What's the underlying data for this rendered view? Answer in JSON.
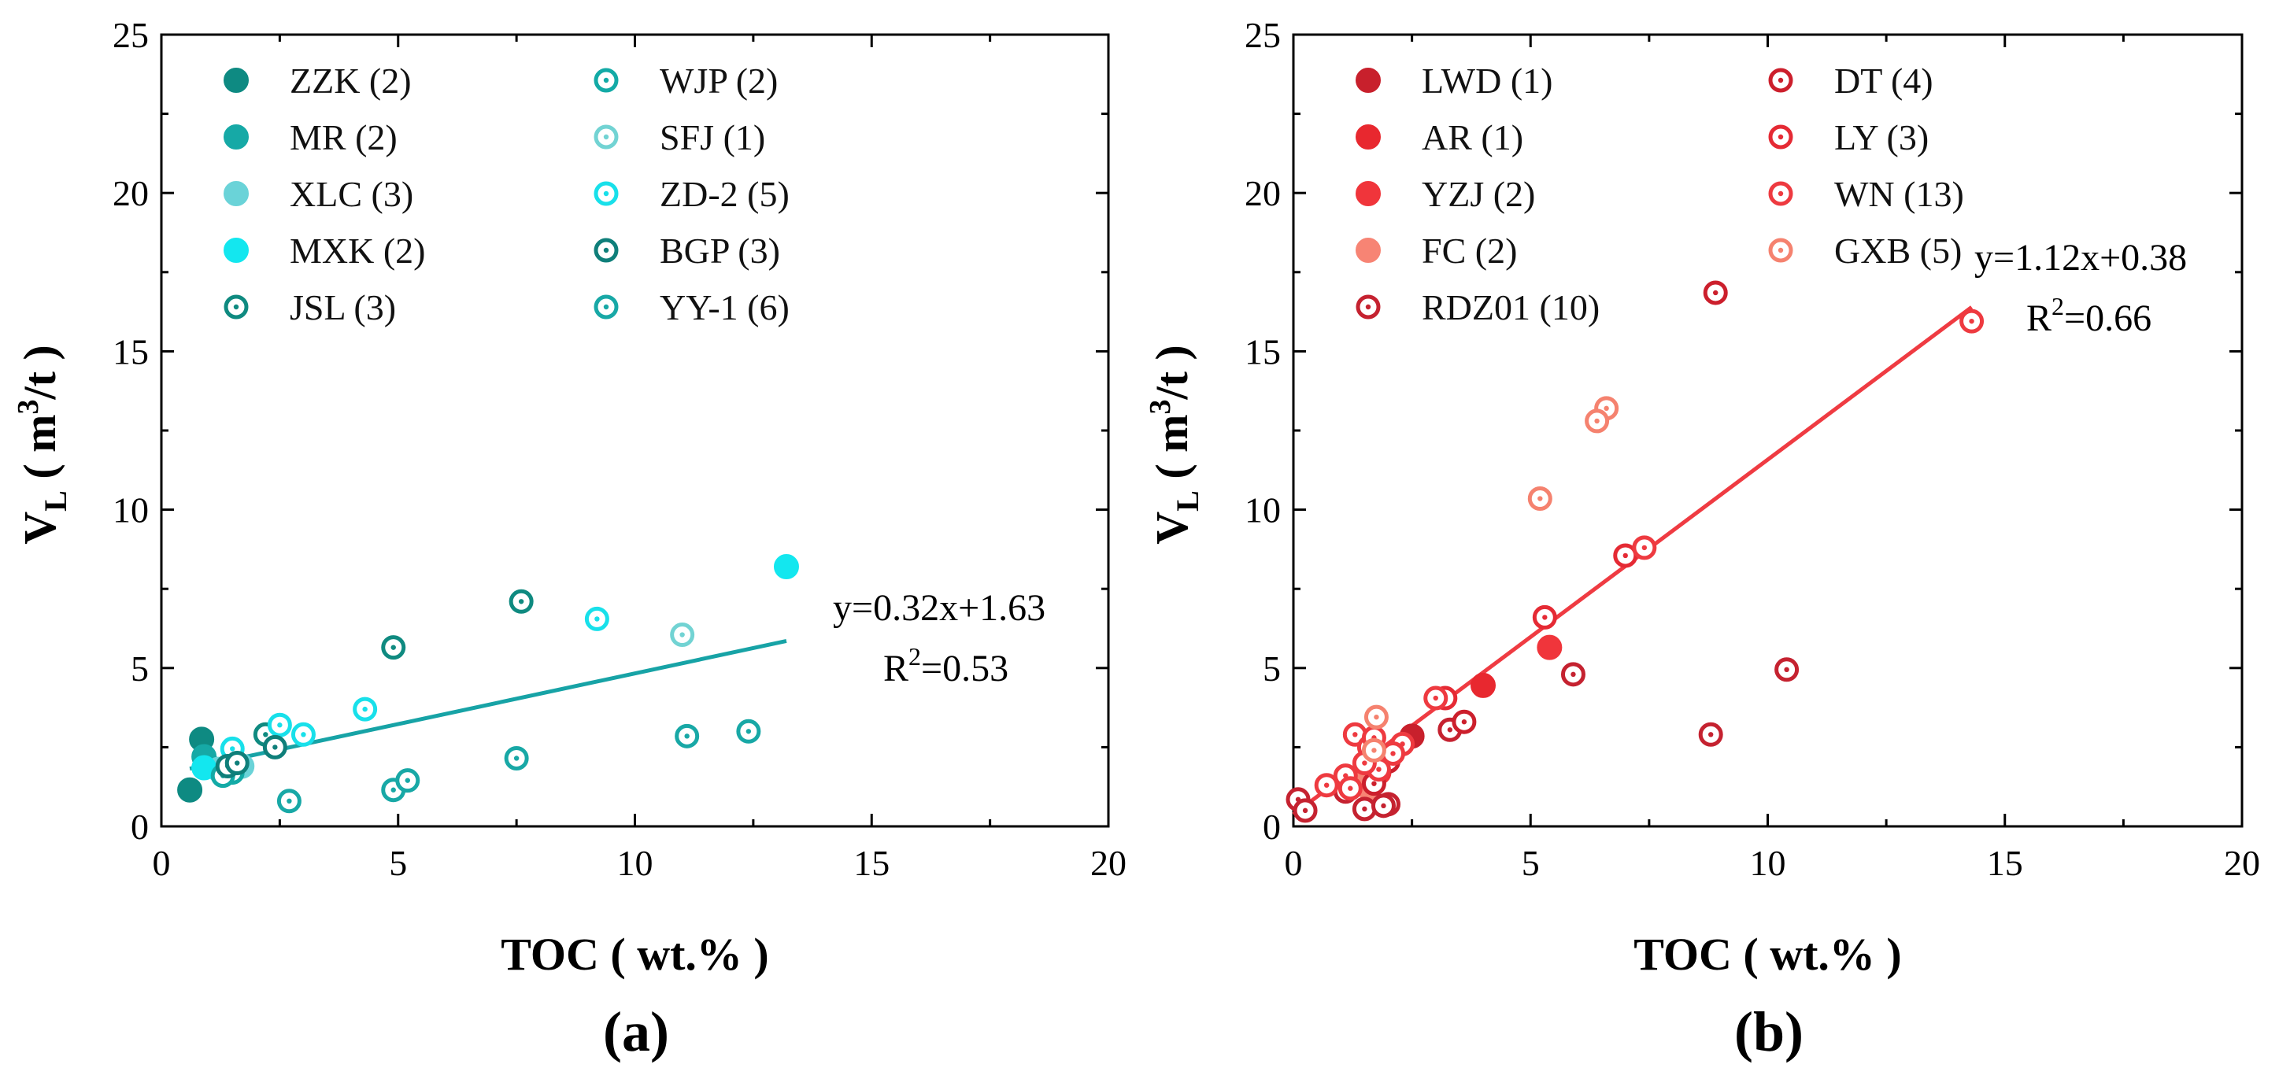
{
  "chart_data": [
    {
      "type": "scatter",
      "panel_label": "(a)",
      "xlabel": "TOC ( wt.% )",
      "ylabel": {
        "main": "V",
        "sub": "L",
        "open": " ( m",
        "sup": "3",
        "close": "/t )"
      },
      "xlim": [
        0,
        20
      ],
      "ylim": [
        0,
        25
      ],
      "xticks": [
        0,
        5,
        10,
        15,
        20
      ],
      "yticks": [
        0,
        5,
        10,
        15,
        20,
        25
      ],
      "fit": {
        "slope": 0.32,
        "intercept": 1.63,
        "x_range": [
          0.6,
          13.2
        ],
        "color": "#17a3a6",
        "equation": "y=0.32x+1.63",
        "r2_prefix": "R",
        "r2_sup": "2",
        "r2_value": "=0.53"
      },
      "series": [
        {
          "name": "ZZK (2)",
          "style": "filled",
          "color": "#0e8a82",
          "points": [
            [
              0.6,
              1.15
            ],
            [
              0.85,
              2.75
            ]
          ]
        },
        {
          "name": "MR (2)",
          "style": "filled",
          "color": "#16a9a6",
          "points": [
            [
              0.9,
              2.2
            ],
            [
              1.0,
              1.9
            ]
          ]
        },
        {
          "name": "XLC (3)",
          "style": "filled",
          "color": "#6ad3d8",
          "points": [
            [
              1.7,
              1.9
            ],
            [
              1.5,
              2.0
            ],
            [
              1.2,
              1.8
            ]
          ]
        },
        {
          "name": "MXK (2)",
          "style": "filled",
          "color": "#13e7ef",
          "points": [
            [
              0.9,
              1.85
            ],
            [
              13.2,
              8.2
            ]
          ]
        },
        {
          "name": "JSL (3)",
          "style": "open",
          "color": "#0f8a80",
          "points": [
            [
              4.9,
              5.65
            ],
            [
              7.6,
              7.1
            ],
            [
              2.2,
              2.9
            ]
          ]
        },
        {
          "name": "WJP (2)",
          "style": "open",
          "color": "#13aaa6",
          "points": [
            [
              1.5,
              1.7
            ],
            [
              1.3,
              1.6
            ]
          ]
        },
        {
          "name": "SFJ (1)",
          "style": "open",
          "color": "#72d3d3",
          "points": [
            [
              11.0,
              6.05
            ]
          ]
        },
        {
          "name": "ZD-2 (5)",
          "style": "open",
          "color": "#18e0ea",
          "points": [
            [
              9.2,
              6.55
            ],
            [
              4.3,
              3.7
            ],
            [
              2.5,
              3.2
            ],
            [
              1.5,
              2.45
            ],
            [
              3.0,
              2.9
            ]
          ]
        },
        {
          "name": "BGP (3)",
          "style": "open",
          "color": "#0f7f7a",
          "points": [
            [
              2.4,
              2.5
            ],
            [
              1.4,
              1.9
            ],
            [
              1.6,
              2.0
            ]
          ]
        },
        {
          "name": "YY-1 (6)",
          "style": "open",
          "color": "#18a8a6",
          "points": [
            [
              2.7,
              0.8
            ],
            [
              4.9,
              1.15
            ],
            [
              5.2,
              1.45
            ],
            [
              7.5,
              2.15
            ],
            [
              11.1,
              2.85
            ],
            [
              12.4,
              3.0
            ]
          ]
        }
      ]
    },
    {
      "type": "scatter",
      "panel_label": "(b)",
      "xlabel": "TOC ( wt.% )",
      "ylabel": {
        "main": "V",
        "sub": "L",
        "open": " ( m",
        "sup": "3",
        "close": "/t )"
      },
      "xlim": [
        0,
        20
      ],
      "ylim": [
        0,
        25
      ],
      "xticks": [
        0,
        5,
        10,
        15,
        20
      ],
      "yticks": [
        0,
        5,
        10,
        15,
        20,
        25
      ],
      "fit": {
        "slope": 1.12,
        "intercept": 0.38,
        "x_range": [
          0.0,
          14.3
        ],
        "color": "#ef3b42",
        "equation": "y=1.12x+0.38",
        "r2_prefix": "R",
        "r2_sup": "2",
        "r2_value": "=0.66"
      },
      "series": [
        {
          "name": "LWD (1)",
          "style": "filled",
          "color": "#c8202c",
          "points": [
            [
              2.5,
              2.85
            ]
          ]
        },
        {
          "name": "AR (1)",
          "style": "filled",
          "color": "#e8282f",
          "points": [
            [
              4.0,
              4.45
            ]
          ]
        },
        {
          "name": "YZJ (2)",
          "style": "filled",
          "color": "#f0353b",
          "points": [
            [
              5.4,
              5.65
            ],
            [
              1.8,
              1.7
            ]
          ]
        },
        {
          "name": "FC (2)",
          "style": "filled",
          "color": "#f78474",
          "points": [
            [
              1.3,
              1.5
            ],
            [
              1.6,
              1.2
            ]
          ]
        },
        {
          "name": "RDZ01 (10)",
          "style": "open",
          "color": "#c52230",
          "points": [
            [
              0.1,
              0.85
            ],
            [
              0.25,
              0.5
            ],
            [
              1.1,
              1.1
            ],
            [
              1.5,
              0.55
            ],
            [
              2.0,
              0.7
            ],
            [
              5.9,
              4.8
            ],
            [
              8.8,
              2.9
            ],
            [
              10.4,
              4.95
            ],
            [
              3.3,
              3.05
            ],
            [
              1.9,
              0.65
            ]
          ]
        },
        {
          "name": "DT (4)",
          "style": "open",
          "color": "#cc1f2c",
          "points": [
            [
              8.9,
              16.85
            ],
            [
              1.7,
              1.35
            ],
            [
              2.0,
              2.05
            ],
            [
              3.6,
              3.3
            ]
          ]
        },
        {
          "name": "LY (3)",
          "style": "open",
          "color": "#e52a34",
          "points": [
            [
              7.0,
              8.55
            ],
            [
              5.3,
              6.6
            ],
            [
              3.2,
              4.05
            ]
          ]
        },
        {
          "name": "WN (13)",
          "style": "open",
          "color": "#ee3a40",
          "points": [
            [
              14.3,
              15.95
            ],
            [
              7.4,
              8.8
            ],
            [
              3.0,
              4.05
            ],
            [
              1.3,
              2.9
            ],
            [
              1.6,
              2.5
            ],
            [
              2.3,
              2.6
            ],
            [
              1.8,
              1.8
            ],
            [
              1.1,
              1.6
            ],
            [
              2.1,
              2.3
            ],
            [
              1.5,
              2.0
            ],
            [
              0.7,
              1.3
            ],
            [
              1.2,
              1.2
            ],
            [
              1.7,
              2.8
            ]
          ]
        },
        {
          "name": "GXB (5)",
          "style": "open",
          "color": "#f5826f",
          "points": [
            [
              6.6,
              13.2
            ],
            [
              6.4,
              12.8
            ],
            [
              5.2,
              10.35
            ],
            [
              1.75,
              3.45
            ],
            [
              1.7,
              2.4
            ]
          ]
        }
      ]
    }
  ]
}
